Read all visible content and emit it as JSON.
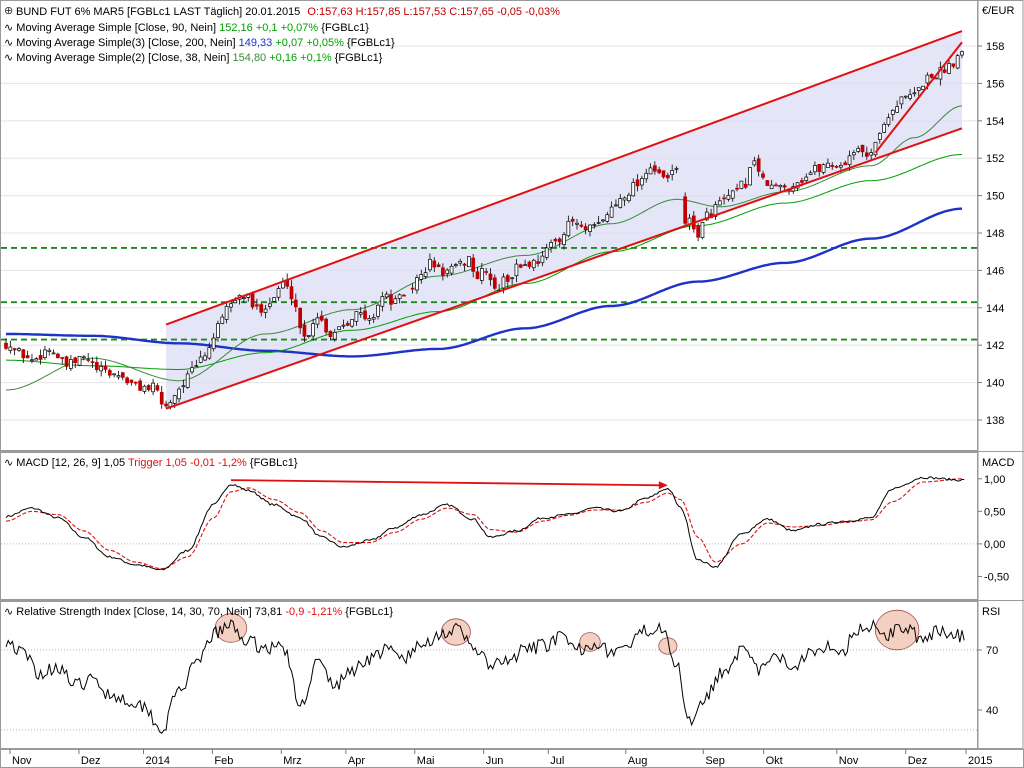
{
  "legends": {
    "price": {
      "symbol": "BUND FUT 6% MAR5 [FGBLc1 LAST Täglich] 20.01.2015",
      "ohlc": "O:157,63 H:157,85 L:157,53 C:157,65 -0,05 -0,03%"
    },
    "ma90": {
      "label": "Moving Average Simple [Close, 90, Nein]",
      "value": "152,16",
      "change": "+0,1 +0,07%",
      "ric": "{FGBLc1}"
    },
    "ma200": {
      "label": "Moving Average Simple(3) [Close, 200, Nein]",
      "value": "149,33",
      "change": "+0,07 +0,05%",
      "ric": "{FGBLc1}"
    },
    "ma38": {
      "label": "Moving Average Simple(2) [Close, 38, Nein]",
      "value": "154,80",
      "change": "+0,16 +0,1%",
      "ric": "{FGBLc1}"
    },
    "macd": {
      "label": "MACD [12, 26, 9]",
      "value": "1,05",
      "trigger": "Trigger 1,05 -0,01 -1,2%",
      "ric": "{FGBLc1}"
    },
    "rsi": {
      "label": "Relative Strength Index [Close, 14, 30, 70, Nein]",
      "value": "73,81",
      "change": "-0,9 -1,21%",
      "ric": "{FGBLc1}"
    }
  },
  "unit_label": "€/EUR",
  "macd_axis_label": "MACD",
  "rsi_axis_label": "RSI",
  "colors": {
    "ma90": "#00a000",
    "ma200": "#1e32c8",
    "ma38": "#3a8a3a",
    "down": "#c00000",
    "trend": "#e01010",
    "channel_fill": "#dcdcf5",
    "support": "#1e8a1e",
    "macd_trigger": "#e01010",
    "rsi_circle": "#f2c8b8"
  },
  "chart_data": {
    "type": "line",
    "title": "BUND FUT 6% MAR5",
    "x_ticks": [
      "Nov",
      "Dez",
      "2014",
      "Feb",
      "Mrz",
      "Apr",
      "Mai",
      "Jun",
      "Jul",
      "Aug",
      "Sep",
      "Okt",
      "Nov",
      "Dez",
      "2015"
    ],
    "price": {
      "ylim": [
        136.5,
        159.5
      ],
      "ticks": [
        {
          "v": 138,
          "label": "138"
        },
        {
          "v": 140,
          "label": "140"
        },
        {
          "v": 142,
          "label": "142"
        },
        {
          "v": 144,
          "label": "144"
        },
        {
          "v": 146,
          "label": "146"
        },
        {
          "v": 148,
          "label": "148"
        },
        {
          "v": 150,
          "label": "150"
        },
        {
          "v": 152,
          "label": "152"
        },
        {
          "v": 154,
          "label": "154"
        },
        {
          "v": 156,
          "label": "156"
        },
        {
          "v": 158,
          "label": "158"
        }
      ],
      "support_levels": [
        147.2,
        144.3,
        142.3
      ],
      "keypoints": [
        [
          0,
          142.1
        ],
        [
          3,
          141.6
        ],
        [
          6,
          141.2
        ],
        [
          10,
          141.8
        ],
        [
          14,
          140.9
        ],
        [
          18,
          141.3
        ],
        [
          22,
          140.6
        ],
        [
          26,
          140.4
        ],
        [
          30,
          139.8
        ],
        [
          34,
          139.7
        ],
        [
          37,
          138.7
        ],
        [
          39,
          139.4
        ],
        [
          41,
          140.0
        ],
        [
          43,
          140.6
        ],
        [
          46,
          141.5
        ],
        [
          49,
          142.9
        ],
        [
          52,
          144.3
        ],
        [
          55,
          144.7
        ],
        [
          58,
          143.9
        ],
        [
          61,
          144.3
        ],
        [
          64,
          145.3
        ],
        [
          66,
          144.7
        ],
        [
          69,
          142.4
        ],
        [
          72,
          143.6
        ],
        [
          75,
          142.6
        ],
        [
          78,
          143.2
        ],
        [
          81,
          143.7
        ],
        [
          84,
          143.3
        ],
        [
          87,
          144.6
        ],
        [
          90,
          144.3
        ],
        [
          93,
          144.9
        ],
        [
          96,
          145.7
        ],
        [
          98,
          146.4
        ],
        [
          101,
          145.9
        ],
        [
          104,
          146.1
        ],
        [
          107,
          146.6
        ],
        [
          109,
          145.6
        ],
        [
          111,
          146.1
        ],
        [
          113,
          144.9
        ],
        [
          116,
          145.6
        ],
        [
          119,
          146.3
        ],
        [
          122,
          146.4
        ],
        [
          125,
          147.1
        ],
        [
          128,
          147.8
        ],
        [
          131,
          148.6
        ],
        [
          134,
          148.1
        ],
        [
          137,
          148.4
        ],
        [
          140,
          149.3
        ],
        [
          143,
          150.1
        ],
        [
          146,
          150.7
        ],
        [
          149,
          151.6
        ],
        [
          151,
          151.0
        ],
        [
          153,
          150.9
        ],
        [
          155,
          151.5
        ],
        [
          157,
          148.7
        ],
        [
          160,
          148.0
        ],
        [
          162,
          148.9
        ],
        [
          165,
          149.6
        ],
        [
          168,
          150.0
        ],
        [
          171,
          150.7
        ],
        [
          173,
          152.0
        ],
        [
          175,
          150.7
        ],
        [
          178,
          150.4
        ],
        [
          181,
          150.5
        ],
        [
          184,
          150.9
        ],
        [
          187,
          151.4
        ],
        [
          190,
          151.7
        ],
        [
          193,
          151.6
        ],
        [
          196,
          152.4
        ],
        [
          199,
          152.2
        ],
        [
          202,
          153.2
        ],
        [
          204,
          154.4
        ],
        [
          207,
          155.1
        ],
        [
          210,
          155.4
        ],
        [
          213,
          156.3
        ],
        [
          216,
          156.6
        ],
        [
          218,
          157.0
        ],
        [
          221,
          157.7
        ]
      ]
    },
    "moving_averages": [
      {
        "key": "ma200",
        "keypoints": [
          [
            0,
            142.6
          ],
          [
            20,
            142.5
          ],
          [
            40,
            142.1
          ],
          [
            60,
            141.7
          ],
          [
            80,
            141.4
          ],
          [
            100,
            141.8
          ],
          [
            120,
            142.9
          ],
          [
            140,
            144.1
          ],
          [
            160,
            145.4
          ],
          [
            180,
            146.4
          ],
          [
            200,
            147.7
          ],
          [
            221,
            149.3
          ]
        ]
      },
      {
        "key": "ma90",
        "keypoints": [
          [
            0,
            141.2
          ],
          [
            20,
            140.9
          ],
          [
            40,
            140.7
          ],
          [
            60,
            141.6
          ],
          [
            80,
            142.8
          ],
          [
            100,
            143.8
          ],
          [
            120,
            145.3
          ],
          [
            140,
            147.0
          ],
          [
            160,
            148.4
          ],
          [
            180,
            149.6
          ],
          [
            200,
            150.8
          ],
          [
            221,
            152.2
          ]
        ]
      },
      {
        "key": "ma38",
        "keypoints": [
          [
            0,
            139.6
          ],
          [
            20,
            141.3
          ],
          [
            40,
            140.1
          ],
          [
            60,
            142.6
          ],
          [
            80,
            143.9
          ],
          [
            100,
            145.7
          ],
          [
            120,
            146.8
          ],
          [
            140,
            148.5
          ],
          [
            155,
            149.8
          ],
          [
            165,
            149.4
          ],
          [
            180,
            150.2
          ],
          [
            200,
            151.6
          ],
          [
            210,
            153.1
          ],
          [
            221,
            154.8
          ]
        ]
      }
    ],
    "channel": {
      "upper": [
        [
          37,
          143.1
        ],
        [
          221,
          158.8
        ]
      ],
      "lower": [
        [
          37,
          138.6
        ],
        [
          221,
          153.6
        ]
      ],
      "steep": [
        [
          201,
          152.3
        ],
        [
          221,
          158.2
        ]
      ]
    },
    "macd": {
      "ylim": [
        -0.8,
        1.35
      ],
      "ticks": [
        {
          "v": -0.5,
          "label": "-0,50"
        },
        {
          "v": 0,
          "label": "0,00"
        },
        {
          "v": 0.5,
          "label": "0,50"
        },
        {
          "v": 1,
          "label": "1,00"
        }
      ],
      "line_keypoints": [
        [
          0,
          0.42
        ],
        [
          6,
          0.55
        ],
        [
          12,
          0.4
        ],
        [
          18,
          0.1
        ],
        [
          24,
          -0.2
        ],
        [
          30,
          -0.32
        ],
        [
          36,
          -0.4
        ],
        [
          42,
          -0.1
        ],
        [
          48,
          0.6
        ],
        [
          52,
          0.92
        ],
        [
          56,
          0.82
        ],
        [
          62,
          0.6
        ],
        [
          68,
          0.4
        ],
        [
          73,
          0.1
        ],
        [
          78,
          -0.05
        ],
        [
          84,
          0.05
        ],
        [
          90,
          0.25
        ],
        [
          96,
          0.45
        ],
        [
          102,
          0.6
        ],
        [
          108,
          0.38
        ],
        [
          112,
          0.1
        ],
        [
          118,
          0.2
        ],
        [
          124,
          0.4
        ],
        [
          130,
          0.45
        ],
        [
          136,
          0.55
        ],
        [
          142,
          0.5
        ],
        [
          148,
          0.7
        ],
        [
          153,
          0.85
        ],
        [
          156,
          0.55
        ],
        [
          160,
          -0.25
        ],
        [
          164,
          -0.35
        ],
        [
          170,
          0.15
        ],
        [
          176,
          0.38
        ],
        [
          182,
          0.2
        ],
        [
          188,
          0.3
        ],
        [
          194,
          0.35
        ],
        [
          200,
          0.4
        ],
        [
          205,
          0.85
        ],
        [
          212,
          1.02
        ],
        [
          221,
          0.98
        ]
      ],
      "trigger_keypoints": [
        [
          0,
          0.35
        ],
        [
          6,
          0.5
        ],
        [
          12,
          0.45
        ],
        [
          18,
          0.2
        ],
        [
          24,
          -0.1
        ],
        [
          30,
          -0.28
        ],
        [
          36,
          -0.38
        ],
        [
          42,
          -0.2
        ],
        [
          48,
          0.4
        ],
        [
          52,
          0.8
        ],
        [
          56,
          0.86
        ],
        [
          62,
          0.68
        ],
        [
          68,
          0.48
        ],
        [
          73,
          0.2
        ],
        [
          78,
          0.02
        ],
        [
          84,
          0.02
        ],
        [
          90,
          0.18
        ],
        [
          96,
          0.38
        ],
        [
          102,
          0.55
        ],
        [
          108,
          0.45
        ],
        [
          112,
          0.22
        ],
        [
          118,
          0.18
        ],
        [
          124,
          0.35
        ],
        [
          130,
          0.44
        ],
        [
          136,
          0.52
        ],
        [
          142,
          0.52
        ],
        [
          148,
          0.64
        ],
        [
          153,
          0.78
        ],
        [
          156,
          0.68
        ],
        [
          160,
          0.1
        ],
        [
          164,
          -0.28
        ],
        [
          170,
          0.0
        ],
        [
          176,
          0.32
        ],
        [
          182,
          0.26
        ],
        [
          188,
          0.28
        ],
        [
          194,
          0.33
        ],
        [
          200,
          0.37
        ],
        [
          205,
          0.65
        ],
        [
          212,
          0.95
        ],
        [
          221,
          1.0
        ]
      ],
      "divergence": [
        [
          52,
          0.98
        ],
        [
          153,
          0.9
        ]
      ]
    },
    "rsi": {
      "ylim": [
        22,
        92
      ],
      "ticks": [
        {
          "v": 40,
          "label": "40"
        },
        {
          "v": 70,
          "label": "70"
        }
      ],
      "ref_lines": [
        30,
        70
      ],
      "keypoints": [
        [
          0,
          75
        ],
        [
          4,
          68
        ],
        [
          8,
          58
        ],
        [
          12,
          62
        ],
        [
          16,
          52
        ],
        [
          20,
          55
        ],
        [
          24,
          48
        ],
        [
          28,
          45
        ],
        [
          32,
          42
        ],
        [
          36,
          30
        ],
        [
          40,
          50
        ],
        [
          44,
          62
        ],
        [
          48,
          78
        ],
        [
          52,
          82
        ],
        [
          56,
          74
        ],
        [
          60,
          71
        ],
        [
          64,
          72
        ],
        [
          68,
          42
        ],
        [
          72,
          64
        ],
        [
          76,
          52
        ],
        [
          80,
          60
        ],
        [
          84,
          66
        ],
        [
          88,
          70
        ],
        [
          92,
          66
        ],
        [
          96,
          72
        ],
        [
          100,
          78
        ],
        [
          104,
          80
        ],
        [
          108,
          72
        ],
        [
          112,
          62
        ],
        [
          116,
          64
        ],
        [
          120,
          70
        ],
        [
          124,
          72
        ],
        [
          128,
          76
        ],
        [
          132,
          70
        ],
        [
          136,
          74
        ],
        [
          140,
          69
        ],
        [
          144,
          72
        ],
        [
          148,
          80
        ],
        [
          152,
          82
        ],
        [
          155,
          62
        ],
        [
          158,
          35
        ],
        [
          162,
          48
        ],
        [
          166,
          60
        ],
        [
          170,
          70
        ],
        [
          174,
          60
        ],
        [
          178,
          66
        ],
        [
          182,
          62
        ],
        [
          186,
          70
        ],
        [
          190,
          72
        ],
        [
          194,
          70
        ],
        [
          196,
          80
        ],
        [
          200,
          82
        ],
        [
          204,
          78
        ],
        [
          208,
          82
        ],
        [
          212,
          74
        ],
        [
          216,
          80
        ],
        [
          221,
          77
        ]
      ],
      "circles": [
        [
          52,
          81,
          2.6
        ],
        [
          104,
          79,
          2.4
        ],
        [
          135,
          74,
          1.7
        ],
        [
          153,
          72,
          1.5
        ],
        [
          206,
          80,
          3.6
        ]
      ]
    },
    "n_days": 222
  }
}
